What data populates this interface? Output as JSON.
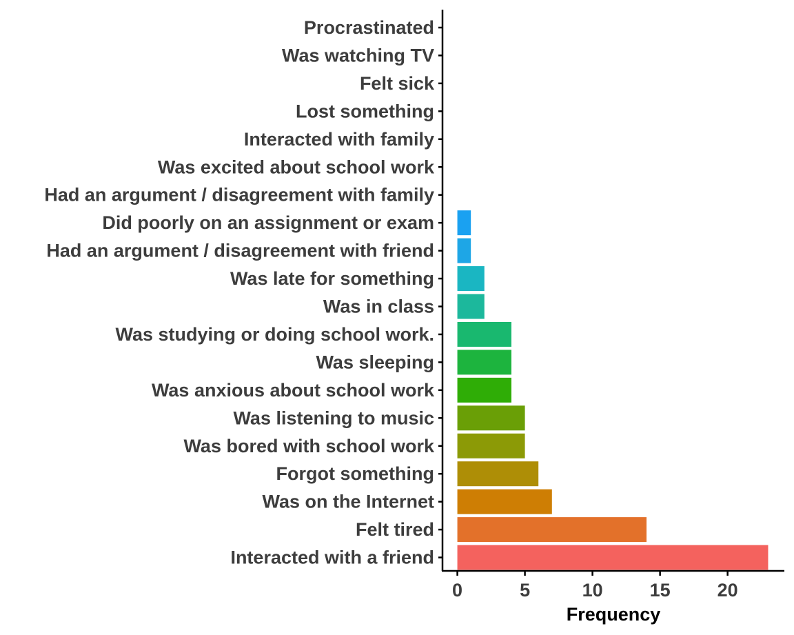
{
  "chart_data": {
    "type": "bar",
    "orientation": "horizontal",
    "title": "",
    "xlabel": "Frequency",
    "ylabel": "",
    "xlim": [
      -1.1,
      24.2
    ],
    "xticks": [
      0,
      5,
      10,
      15,
      20
    ],
    "grid": false,
    "legend": "none",
    "categories": [
      "Procrastinated",
      "Was watching TV",
      "Felt sick",
      "Lost something",
      "Interacted with family",
      "Was excited about school work",
      "Had an argument / disagreement with family",
      "Did poorly on an assignment or exam",
      "Had an argument / disagreement with friend",
      "Was late for something",
      "Was in class",
      "Was studying or doing school work.",
      "Was sleeping",
      "Was anxious about school work",
      "Was listening to music",
      "Was bored with school work",
      "Forgot something",
      "Was on the Internet",
      "Felt tired",
      "Interacted with a friend"
    ],
    "values": [
      0,
      0,
      0,
      0,
      0,
      0,
      0,
      1,
      1,
      2,
      2,
      4,
      4,
      4,
      5,
      5,
      6,
      7,
      14,
      23
    ],
    "colors": [
      "#FF62BC",
      "#FF61C9",
      "#FC61D5",
      "#F564E3",
      "#E76BF3",
      "#00B8E7",
      "#00BCD8",
      "#1AA1F1",
      "#1EA6E6",
      "#1AB6C2",
      "#1CB89C",
      "#19B86F",
      "#1DB43E",
      "#2FAD06",
      "#6A9F06",
      "#8C9A06",
      "#AE8E06",
      "#CE7E04",
      "#E3712A",
      "#F4625E"
    ]
  }
}
